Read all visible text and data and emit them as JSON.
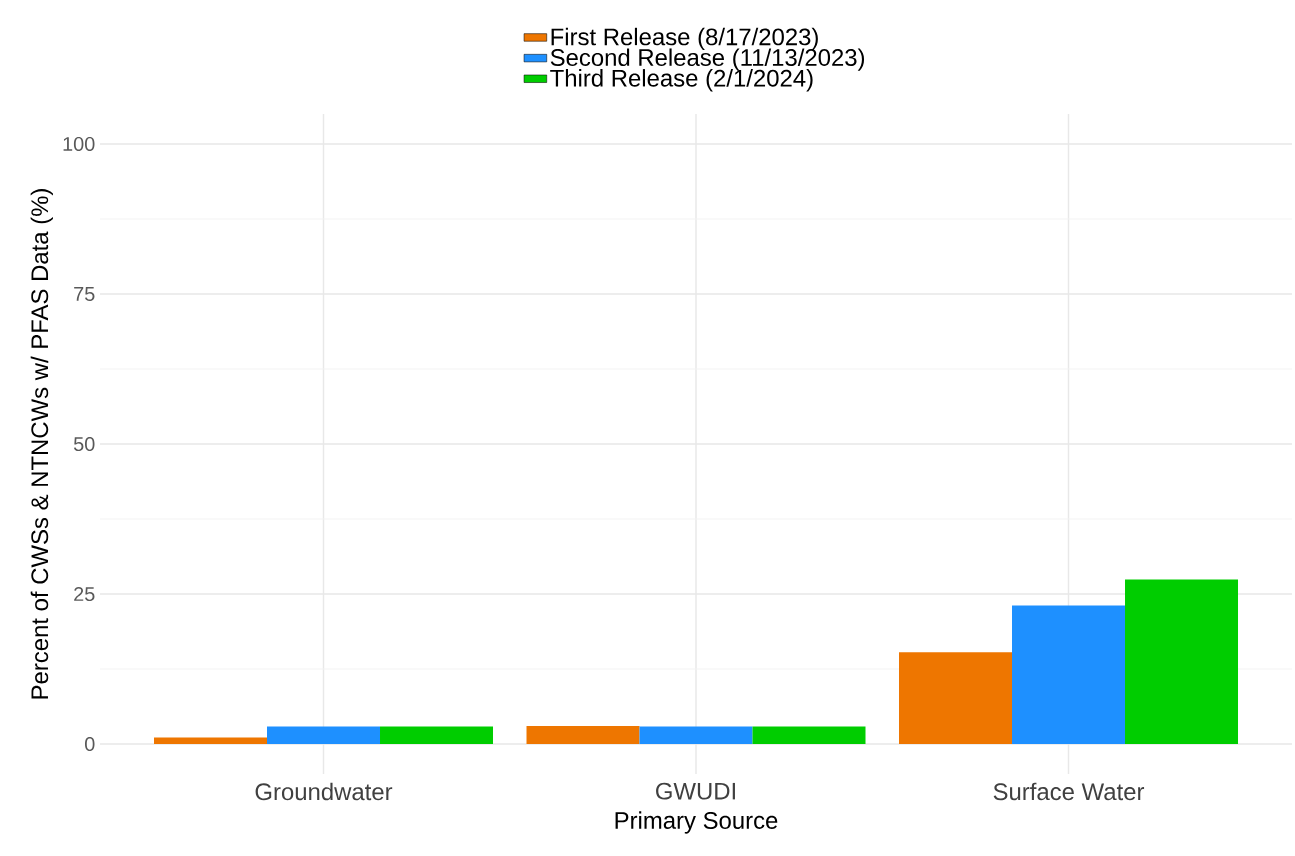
{
  "chart_data": {
    "type": "bar",
    "categories": [
      "Groundwater",
      "GWUDI",
      "Surface Water"
    ],
    "series": [
      {
        "name": "First Release (8/17/2023)",
        "color": "#ee7600",
        "values": [
          1.1,
          3.0,
          15.3
        ]
      },
      {
        "name": "Second Release (11/13/2023)",
        "color": "#1e90ff",
        "values": [
          2.9,
          2.9,
          23.1
        ]
      },
      {
        "name": "Third Release (2/1/2024)",
        "color": "#00cd00",
        "values": [
          2.9,
          2.9,
          27.4
        ]
      }
    ],
    "xlabel": "Primary Source",
    "ylabel": "Percent of CWSs & NTNCWs w/ PFAS Data (%)",
    "ylim": [
      -5,
      105
    ],
    "yticks": [
      0,
      25,
      50,
      75,
      100
    ],
    "grid": true,
    "legend": "top"
  }
}
